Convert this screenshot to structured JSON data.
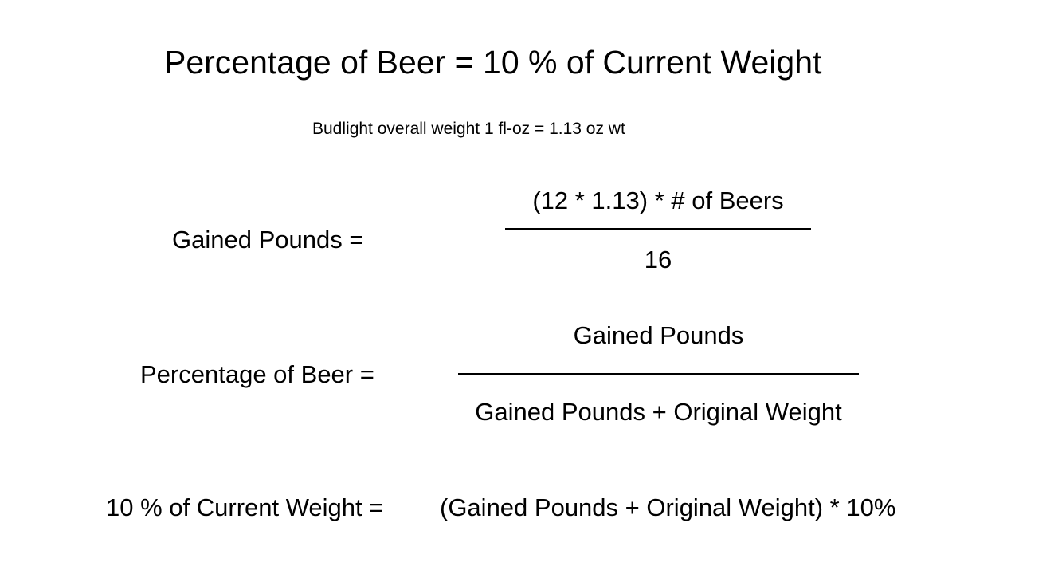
{
  "title": "Percentage of Beer = 10 % of Current Weight",
  "subtitle": "Budlight overall weight 1 fl-oz = 1.13 oz wt",
  "equations": {
    "gained_pounds": {
      "label": "Gained Pounds =",
      "numerator": "(12 * 1.13) * # of Beers",
      "denominator": "16"
    },
    "percentage_of_beer": {
      "label": "Percentage of Beer =",
      "numerator": "Gained Pounds",
      "denominator": "Gained Pounds + Original Weight"
    },
    "ten_percent": {
      "label": "10 % of Current Weight =",
      "expression": "(Gained Pounds + Original Weight) * 10%"
    }
  }
}
